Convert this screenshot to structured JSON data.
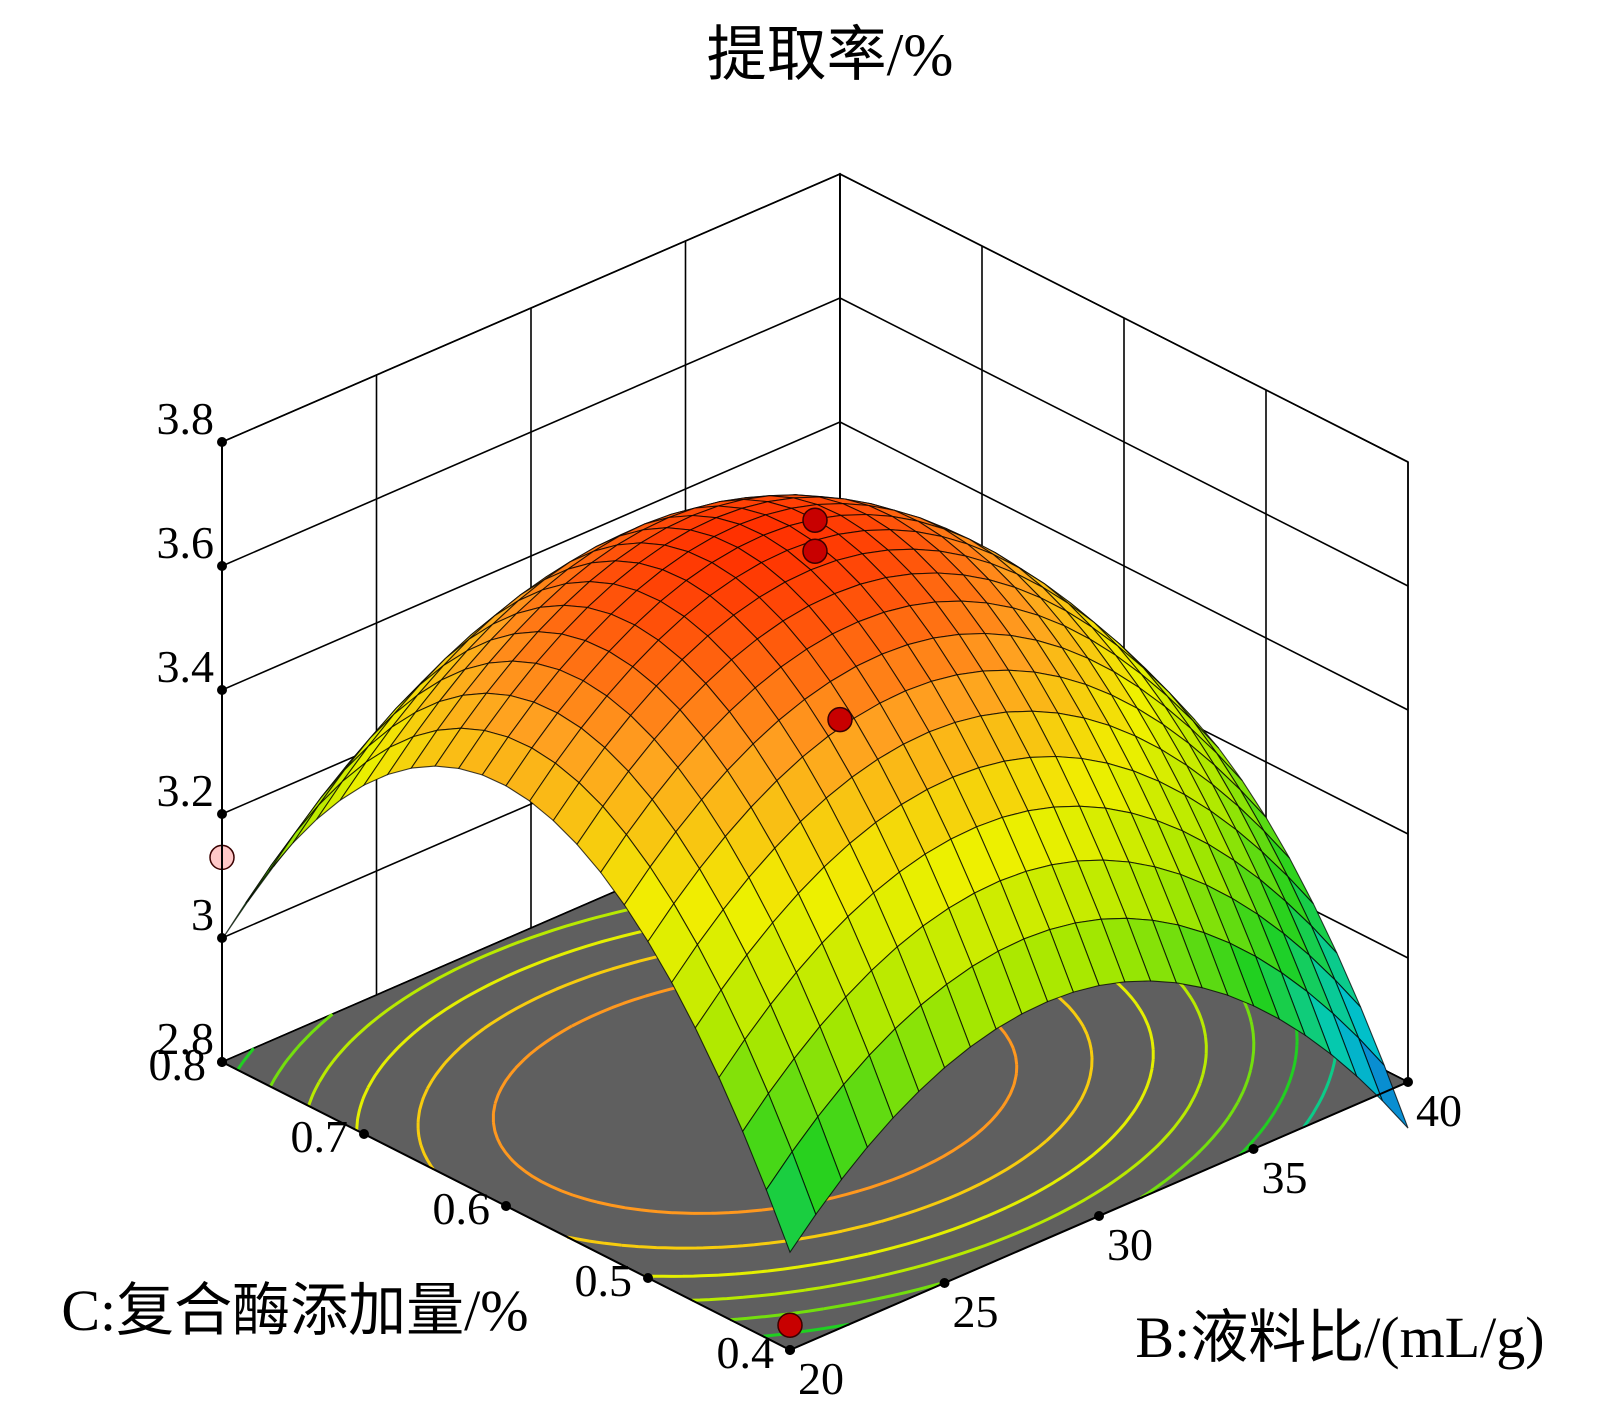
{
  "chart_data": {
    "type": "surface",
    "title": "提取率/%",
    "xlabel": "B:液料比/(mL/g)",
    "ylabel": "C:复合酶添加量/%",
    "zlabel": "",
    "xlim": [
      20,
      40
    ],
    "ylim": [
      0.4,
      0.8
    ],
    "zlim": [
      2.8,
      3.8
    ],
    "x_ticks": [
      "20",
      "25",
      "30",
      "35",
      "40"
    ],
    "y_ticks": [
      "0.4",
      "0.5",
      "0.6",
      "0.7",
      "0.8"
    ],
    "z_ticks": [
      "2.8",
      "3",
      "3.2",
      "3.4",
      "3.6",
      "3.8"
    ],
    "surface_model": {
      "x_center": 29,
      "x_half_range": 10,
      "y_center": 0.6,
      "y_half_range": 0.2,
      "intercept": 3.7,
      "b_lin": -0.05,
      "c_lin": 0.02,
      "bc": 0.0,
      "b_quad": -0.33,
      "c_quad": -0.5
    },
    "grid": true,
    "colormap": [
      "#1060d8",
      "#00c8c8",
      "#20d020",
      "#a8e800",
      "#f0f000",
      "#ffa020",
      "#ff3000"
    ],
    "floor_color": "#5f5f5f",
    "contour_levels": [
      2.95,
      3.05,
      3.15,
      3.25,
      3.35,
      3.45,
      3.55
    ],
    "design_points": [
      {
        "x": 30,
        "y": 0.6,
        "z": 3.69,
        "color": "#c80000"
      },
      {
        "x": 30,
        "y": 0.6,
        "z": 3.64,
        "color": "#c80000"
      },
      {
        "x": 20,
        "y": 0.8,
        "z": 3.13,
        "color": "#ffc8c8"
      },
      {
        "x": 40,
        "y": 0.8,
        "z": 2.92,
        "color": "#c80000"
      },
      {
        "x": 20,
        "y": 0.4,
        "z": 2.84,
        "color": "#c80000"
      }
    ]
  }
}
